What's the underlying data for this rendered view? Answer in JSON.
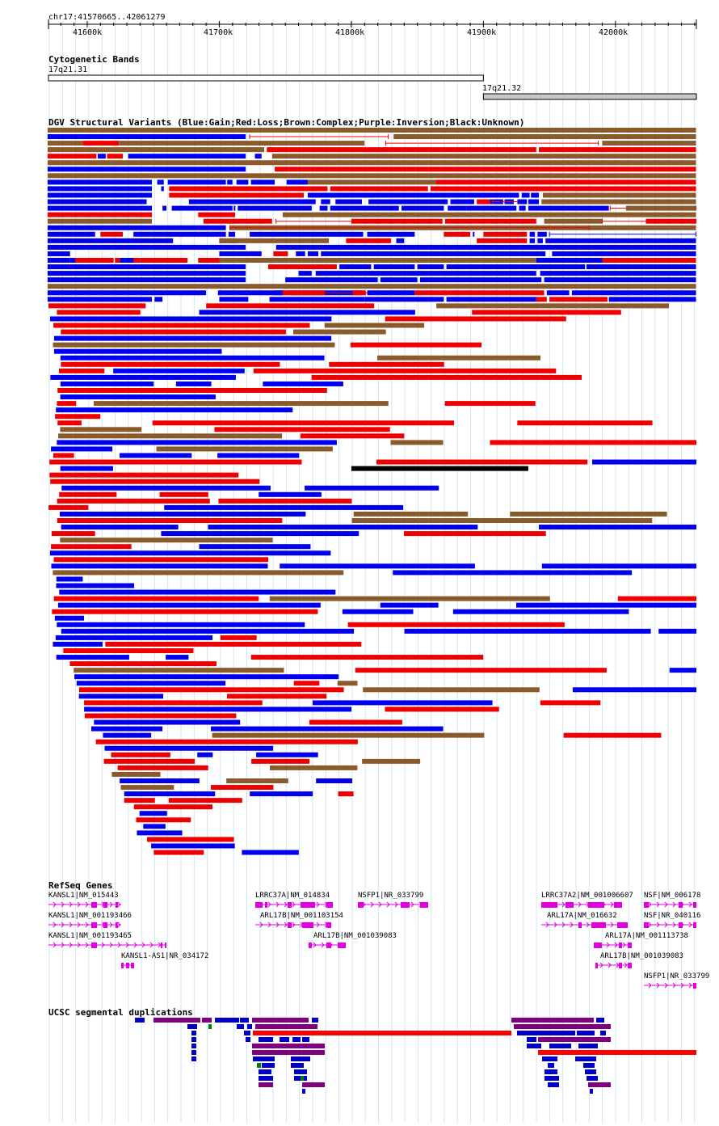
{
  "ruler": {
    "region_label": "chr17:41570665..42061279",
    "ticks": [
      "41600k",
      "41700k",
      "41800k",
      "41900k",
      "42000k"
    ]
  },
  "cytoband": {
    "title": "Cytogenetic Bands",
    "bands": [
      {
        "name": "17q21.31",
        "start": 41570665,
        "end": 41900000,
        "stain": "gneg"
      },
      {
        "name": "17q21.32",
        "start": 41900000,
        "end": 42061279,
        "stain": "gpos25"
      }
    ]
  },
  "dgv": {
    "title": "DGV Structural Variants (Blue:Gain;Red:Loss;Brown:Complex;Purple:Inversion;Black:Unknown)",
    "colors": {
      "gain": "#0000ee",
      "loss": "#ee0000",
      "complex": "#8b5a2b",
      "inversion": "#800080",
      "unknown": "#000000"
    },
    "rows": [
      [
        [
          "c",
          41570,
          42061
        ]
      ],
      [
        [
          "g",
          41570,
          41720
        ],
        [
          "lk",
          41723,
          41828
        ],
        [
          "c",
          41832,
          42061
        ]
      ],
      [
        [
          "c",
          41570,
          41597
        ],
        [
          "l",
          41597,
          41624
        ],
        [
          "c",
          41624,
          41810
        ],
        [
          "lk",
          41826,
          41987
        ],
        [
          "c",
          41990,
          42061
        ]
      ],
      [
        [
          "c",
          41570,
          41734
        ],
        [
          "l",
          41736,
          41940
        ],
        [
          "l",
          41942,
          42061
        ]
      ],
      [
        [
          "l",
          41570,
          41607
        ],
        [
          "g",
          41608,
          41614
        ],
        [
          "l",
          41615,
          41627
        ],
        [
          "g",
          41631,
          41720
        ],
        [
          "g",
          41727,
          41732
        ],
        [
          "c",
          41740,
          42061
        ]
      ],
      [
        [
          "c",
          41570,
          42061
        ]
      ],
      [
        [
          "g",
          41570,
          41720
        ],
        [
          "l",
          41742,
          42061
        ]
      ],
      [
        [
          "c",
          41570,
          42061
        ]
      ],
      [
        [
          "g",
          41570,
          41649
        ],
        [
          "g",
          41653,
          41658
        ],
        [
          "g",
          41661,
          41705
        ],
        [
          "g",
          41706,
          41710
        ],
        [
          "g",
          41713,
          41722
        ],
        [
          "g",
          41724,
          41742
        ],
        [
          "g",
          41751,
          41767
        ],
        [
          "c",
          41767,
          41864
        ],
        [
          "l",
          41864,
          42061
        ]
      ],
      [
        [
          "g",
          41570,
          41649
        ],
        [
          "g",
          41656,
          41658
        ],
        [
          "l",
          41662,
          41782
        ],
        [
          "l",
          41784,
          41858
        ],
        [
          "l",
          41860,
          42061
        ]
      ],
      [
        [
          "g",
          41570,
          41649
        ],
        [
          "l",
          41662,
          41764
        ],
        [
          "g",
          41767,
          41927
        ],
        [
          "g",
          41929,
          41935
        ],
        [
          "g",
          41936,
          41942
        ],
        [
          "c",
          41945,
          42061
        ]
      ],
      [
        [
          "g",
          41570,
          41645
        ],
        [
          "g",
          41677,
          41773
        ],
        [
          "g",
          41777,
          41784
        ],
        [
          "g",
          41788,
          41808
        ],
        [
          "g",
          41813,
          41873
        ],
        [
          "g",
          41875,
          41893
        ],
        [
          "g",
          41905,
          41915
        ],
        [
          "g",
          41916,
          41923
        ],
        [
          "l",
          41895,
          41905
        ],
        [
          "lk",
          41907,
          41926
        ],
        [
          "g",
          41926,
          41933
        ],
        [
          "g",
          41934,
          41942
        ],
        [
          "c",
          41944,
          42061
        ]
      ],
      [
        [
          "g",
          41570,
          41649
        ],
        [
          "g",
          41657,
          41660
        ],
        [
          "g",
          41664,
          41710
        ],
        [
          "g",
          41711,
          41712
        ],
        [
          "g",
          41714,
          41770
        ],
        [
          "g",
          41776,
          41782
        ],
        [
          "g",
          41784,
          41836
        ],
        [
          "g",
          41838,
          41870
        ],
        [
          "g",
          41873,
          41887
        ],
        [
          "g",
          41887,
          41925
        ],
        [
          "g",
          41927,
          41932
        ],
        [
          "g",
          41934,
          41995
        ],
        [
          "lk",
          41996,
          42061
        ],
        [
          "c",
          42008,
          42061
        ]
      ],
      [
        [
          "l",
          41570,
          41649
        ],
        [
          "l",
          41684,
          41712
        ],
        [
          "c",
          41748,
          42061
        ]
      ],
      [
        [
          "c",
          41570,
          41649
        ],
        [
          "l",
          41688,
          41740
        ],
        [
          "lk",
          41743,
          41859
        ],
        [
          "l",
          41800,
          41869
        ],
        [
          "l",
          41871,
          41940
        ],
        [
          "c",
          41946,
          41990
        ],
        [
          "lk",
          41990,
          42061
        ],
        [
          "l",
          42023,
          42061
        ]
      ],
      [
        [
          "g",
          41570,
          41705
        ],
        [
          "c",
          41708,
          42061
        ],
        [
          "lk",
          41708,
          41980
        ]
      ],
      [
        [
          "g",
          41570,
          41606
        ],
        [
          "l",
          41610,
          41627
        ],
        [
          "g",
          41635,
          41705
        ],
        [
          "g",
          41707,
          41712
        ],
        [
          "g",
          41723,
          41809
        ],
        [
          "g",
          41812,
          41848
        ],
        [
          "l",
          41870,
          41886
        ],
        [
          "g",
          41892,
          41892
        ],
        [
          "l",
          41883,
          41890
        ],
        [
          "l",
          41900,
          41933
        ],
        [
          "g",
          41935,
          41939
        ],
        [
          "g",
          41941,
          41948
        ],
        [
          "gk",
          41950,
          42061
        ]
      ],
      [
        [
          "g",
          41570,
          41665
        ],
        [
          "g",
          41700,
          41705
        ],
        [
          "g",
          41707,
          41713
        ],
        [
          "c",
          41700,
          41783
        ],
        [
          "l",
          41796,
          41830
        ],
        [
          "g",
          41834,
          41840
        ],
        [
          "l",
          41895,
          41933
        ],
        [
          "g",
          41935,
          41939
        ],
        [
          "g",
          41941,
          41945
        ],
        [
          "g",
          41947,
          42061
        ]
      ],
      [
        [
          "g",
          41570,
          41720
        ],
        [
          "g",
          41743,
          42061
        ]
      ],
      [
        [
          "g",
          41570,
          41587
        ],
        [
          "g",
          41700,
          41732
        ],
        [
          "l",
          41741,
          41752
        ],
        [
          "g",
          41758,
          41765
        ],
        [
          "g",
          41767,
          41775
        ],
        [
          "g",
          41777,
          41947
        ],
        [
          "g",
          41952,
          42061
        ]
      ],
      [
        [
          "g",
          41570,
          41587
        ],
        [
          "g",
          41587,
          41595
        ],
        [
          "l",
          41591,
          41620
        ],
        [
          "l",
          41621,
          41640
        ],
        [
          "g",
          41625,
          41635
        ],
        [
          "l",
          41640,
          41676
        ],
        [
          "l",
          41684,
          41720
        ],
        [
          "c",
          41700,
          41940
        ],
        [
          "g",
          41940,
          41990
        ],
        [
          "l",
          41990,
          42061
        ]
      ],
      [
        [
          "g",
          41570,
          41720
        ],
        [
          "l",
          41737,
          41789
        ],
        [
          "g",
          41791,
          41815
        ],
        [
          "g",
          41817,
          41848
        ],
        [
          "g",
          41850,
          41870
        ],
        [
          "g",
          41872,
          41977
        ],
        [
          "g",
          41978,
          42061
        ]
      ],
      [
        [
          "g",
          41570,
          41720
        ],
        [
          "g",
          41760,
          41770
        ],
        [
          "g",
          41773,
          41940
        ],
        [
          "g",
          41943,
          42061
        ]
      ],
      [
        [
          "g",
          41570,
          41720
        ],
        [
          "g",
          41750,
          41820
        ],
        [
          "g",
          41822,
          41850
        ],
        [
          "g",
          41852,
          41944
        ],
        [
          "g",
          41946,
          42061
        ]
      ],
      [
        [
          "c",
          41570,
          42061
        ]
      ],
      [
        [
          "g",
          41570,
          41690
        ],
        [
          "g",
          41699,
          41750
        ],
        [
          "g",
          41752,
          41808
        ],
        [
          "lk",
          41758,
          41938
        ],
        [
          "g",
          41742,
          41748
        ],
        [
          "l",
          41748,
          41780
        ],
        [
          "l",
          41801,
          41811
        ],
        [
          "g",
          41812,
          41848
        ],
        [
          "l",
          41848,
          41946
        ],
        [
          "g",
          41948,
          41965
        ],
        [
          "g",
          41967,
          42061
        ]
      ],
      [
        [
          "g",
          41570,
          41649
        ],
        [
          "g",
          41651,
          41657
        ],
        [
          "g",
          41700,
          41722
        ],
        [
          "g",
          41738,
          41810
        ],
        [
          "g",
          41810,
          41870
        ],
        [
          "g",
          41872,
          41940
        ],
        [
          "l",
          41940,
          41948
        ],
        [
          "l",
          41950,
          41994
        ],
        [
          "g",
          41995,
          42061
        ]
      ]
    ]
  },
  "dgv_summary": {
    "row_count": 112,
    "color_order": [
      "gain",
      "loss",
      "complex",
      "inversion",
      "unknown"
    ]
  },
  "refseq": {
    "title": "RefSeq Genes",
    "genes": [
      {
        "label": "KANSL1|NM_015443",
        "strand": "-"
      },
      {
        "label": "KANSL1|NM_001193466",
        "strand": "-"
      },
      {
        "label": "KANSL1|NM_001193465",
        "strand": "-"
      },
      {
        "label": "KANSL1-AS1|NR_034172",
        "strand": "+"
      },
      {
        "label": "LRRC37A|NM_014834",
        "strand": "+"
      },
      {
        "label": "ARL17B|NM_001103154",
        "strand": "-"
      },
      {
        "label": "ARL17B|NM_001039083",
        "strand": "-"
      },
      {
        "label": "NSFP1|NR_033799",
        "strand": "+"
      },
      {
        "label": "LRRC37A2|NM_001006607",
        "strand": "+"
      },
      {
        "label": "ARL17A|NM_016632",
        "strand": "-"
      },
      {
        "label": "ARL17A|NM_001113738",
        "strand": "-"
      },
      {
        "label": "ARL17B|NM_001039083",
        "strand": "-"
      },
      {
        "label": "NSF|NM_006178",
        "strand": "+"
      },
      {
        "label": "NSF|NR_040116",
        "strand": "+"
      },
      {
        "label": "NSFP1|NR_033799",
        "strand": "+"
      }
    ]
  },
  "segdups": {
    "title": "UCSC segmental duplications",
    "colors": {
      "high": "#ff0000",
      "mid": "#800080",
      "low": "#0000cc",
      "green": "#008000"
    }
  }
}
